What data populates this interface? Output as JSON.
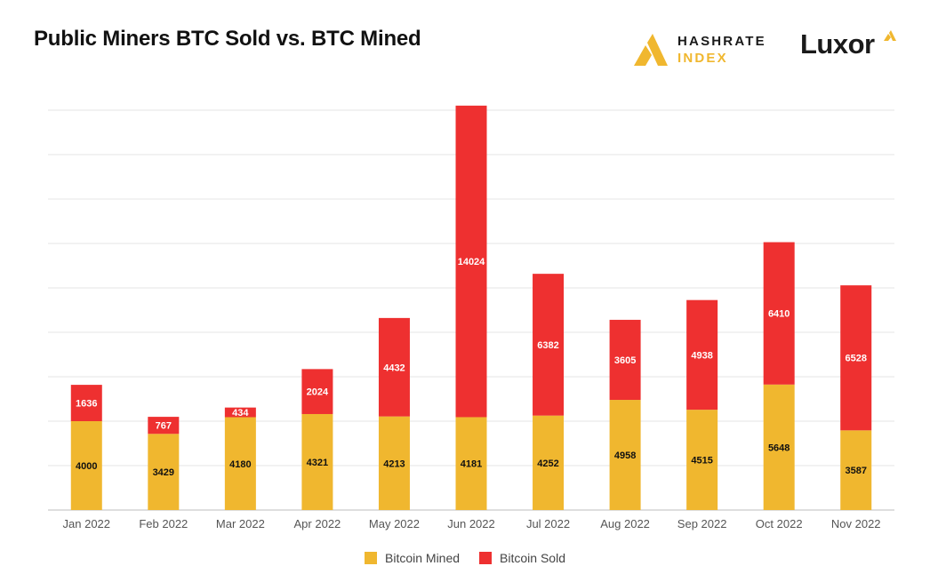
{
  "header": {
    "title": "Public Miners BTC Sold vs. BTC Mined",
    "brand_hashrate_line1": "HASHRATE",
    "brand_hashrate_line2": "INDEX",
    "brand_luxor": "Luxor"
  },
  "colors": {
    "mined": "#F0B72F",
    "sold": "#EE3030",
    "grid": "#e6e6e6",
    "axis": "#bdbdbd"
  },
  "chart_data": {
    "type": "bar",
    "stacked": true,
    "title": "Public Miners BTC Sold vs. BTC Mined",
    "xlabel": "",
    "ylabel": "",
    "ylim": [
      0,
      18000
    ],
    "grid": true,
    "legend_position": "bottom-center",
    "categories": [
      "Jan 2022",
      "Feb 2022",
      "Mar 2022",
      "Apr 2022",
      "May 2022",
      "Jun 2022",
      "Jul 2022",
      "Aug 2022",
      "Sep 2022",
      "Oct 2022",
      "Nov 2022"
    ],
    "series": [
      {
        "name": "Bitcoin Mined",
        "values": [
          4000,
          3429,
          4180,
          4321,
          4213,
          4181,
          4252,
          4958,
          4515,
          5648,
          3587
        ]
      },
      {
        "name": "Bitcoin Sold",
        "values": [
          1636,
          767,
          434,
          2024,
          4432,
          14024,
          6382,
          3605,
          4938,
          6410,
          6528
        ]
      }
    ]
  }
}
